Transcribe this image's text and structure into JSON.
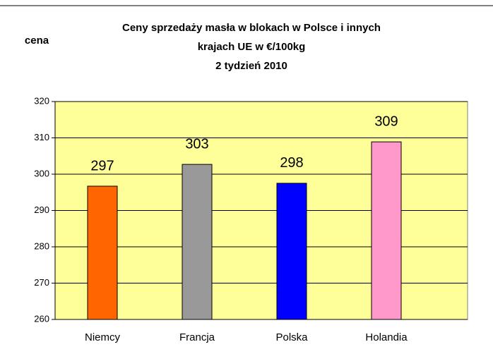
{
  "chart_data": {
    "type": "bar",
    "title": [
      "Ceny sprzedaży masła w blokach w Polsce i  innych",
      "krajach UE w €/100kg",
      "2 tydzień 2010"
    ],
    "ylabel": "cena",
    "categories": [
      "Niemcy",
      "Francja",
      "Polska",
      "Holandia"
    ],
    "values": [
      296.7,
      302.7,
      297.5,
      308.9
    ],
    "value_labels": [
      "297",
      "303",
      "298",
      "309"
    ],
    "colors": [
      "#ff6600",
      "#999999",
      "#0000ff",
      "#ff99cc"
    ],
    "ylim": [
      260,
      320
    ],
    "yticks": [
      260,
      270,
      280,
      290,
      300,
      310,
      320
    ],
    "grid": true
  }
}
